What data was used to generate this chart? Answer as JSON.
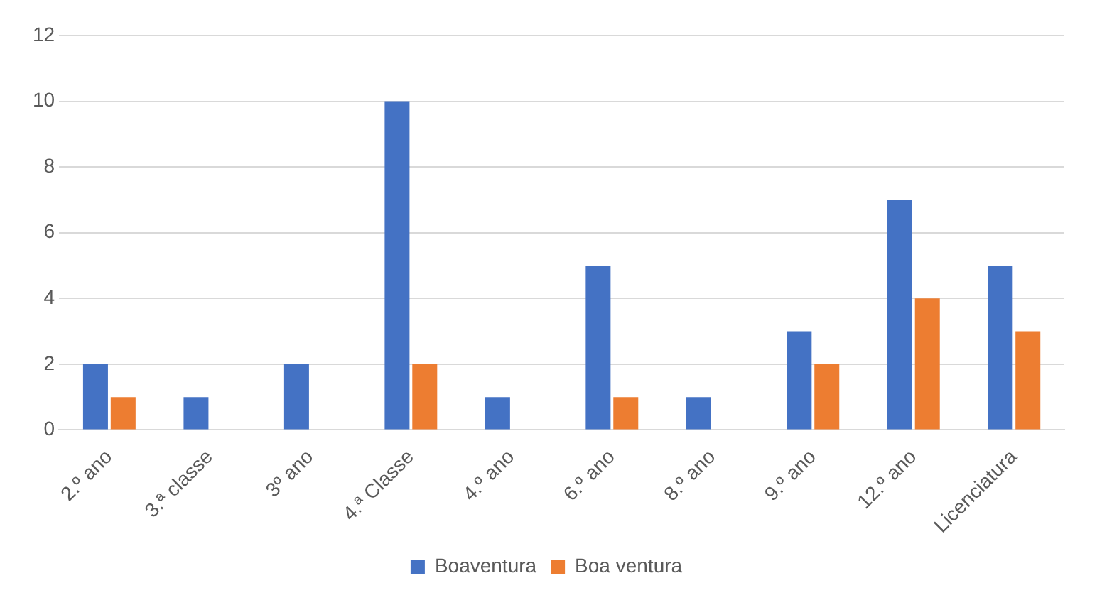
{
  "chart_data": {
    "type": "bar",
    "categories": [
      "2.º ano",
      "3.ª classe",
      "3º ano",
      "4.ª Classe",
      "4.º ano",
      "6.º ano",
      "8.º ano",
      "9.º ano",
      "12.º ano",
      "Licenciatura"
    ],
    "series": [
      {
        "name": "Boaventura",
        "color": "#4472c4",
        "values": [
          2,
          1,
          2,
          10,
          1,
          5,
          1,
          3,
          7,
          5
        ]
      },
      {
        "name": "Boa ventura",
        "color": "#ed7d31",
        "values": [
          1,
          0,
          0,
          2,
          0,
          1,
          0,
          2,
          4,
          3
        ]
      }
    ],
    "ylim": [
      0,
      12
    ],
    "yticks": [
      0,
      2,
      4,
      6,
      8,
      10,
      12
    ],
    "grid": "y",
    "legend": "bottom"
  }
}
